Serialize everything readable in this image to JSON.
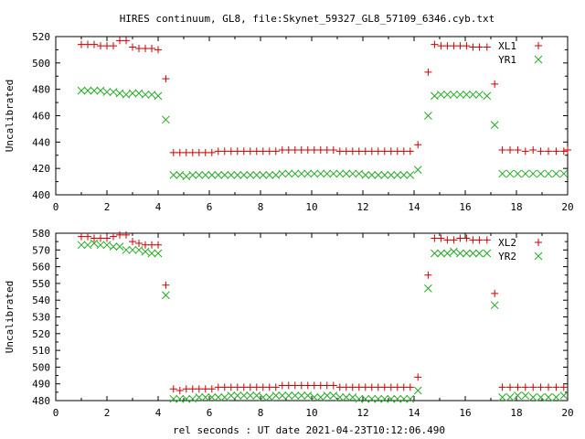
{
  "chart_data": {
    "title": "HIRES continuum, GL8, file:Skynet_59327_GL8_57109_6346.cyb.txt",
    "xlabel": "rel seconds : UT date 2021-04-23T10:12:06.490",
    "x_ticks": [
      "0",
      "2",
      "4",
      "6",
      "8",
      "10",
      "12",
      "14",
      "16",
      "18",
      "20"
    ],
    "colors": {
      "series1": "#cc0000",
      "series2": "#22aa22"
    },
    "panels": [
      {
        "type": "scatter",
        "ylabel": "Uncalibrated",
        "xlim": [
          0,
          20
        ],
        "ylim": [
          400,
          520
        ],
        "y_ticks": [
          "400",
          "420",
          "440",
          "460",
          "480",
          "500",
          "520"
        ],
        "legend_position": "top-right",
        "series": [
          {
            "name": "XL1",
            "marker": "plus",
            "color": "#cc0000",
            "x": [
              1.0,
              1.25,
              1.5,
              1.75,
              2.0,
              2.25,
              2.5,
              2.75,
              3.0,
              3.25,
              3.5,
              3.75,
              4.0,
              4.3,
              4.6,
              4.85,
              5.1,
              5.35,
              5.6,
              5.85,
              6.1,
              6.35,
              6.6,
              6.85,
              7.1,
              7.35,
              7.6,
              7.85,
              8.1,
              8.35,
              8.6,
              8.85,
              9.1,
              9.35,
              9.6,
              9.85,
              10.1,
              10.35,
              10.6,
              10.85,
              11.1,
              11.35,
              11.6,
              11.85,
              12.1,
              12.35,
              12.6,
              12.85,
              13.1,
              13.35,
              13.6,
              13.85,
              14.15,
              14.55,
              14.8,
              15.05,
              15.3,
              15.55,
              15.8,
              16.05,
              16.3,
              16.55,
              16.85,
              17.15,
              17.45,
              17.75,
              18.05,
              18.35,
              18.65,
              18.95,
              19.25,
              19.55,
              19.85
            ],
            "y": [
              514,
              514,
              514,
              513,
              513,
              513,
              517,
              517,
              512,
              511,
              511,
              511,
              510,
              488,
              432,
              432,
              432,
              432,
              432,
              432,
              432,
              433,
              433,
              433,
              433,
              433,
              433,
              433,
              433,
              433,
              433,
              434,
              434,
              434,
              434,
              434,
              434,
              434,
              434,
              434,
              433,
              433,
              433,
              433,
              433,
              433,
              433,
              433,
              433,
              433,
              433,
              433,
              438,
              493,
              514,
              513,
              513,
              513,
              513,
              513,
              512,
              512,
              512,
              484,
              434,
              434,
              434,
              433,
              434,
              433,
              433,
              433,
              433
            ],
            "extra_points_right_edge": [
              434
            ]
          },
          {
            "name": "YR1",
            "marker": "cross",
            "color": "#22aa22",
            "x": [
              1.0,
              1.25,
              1.5,
              1.75,
              2.0,
              2.25,
              2.5,
              2.75,
              3.0,
              3.25,
              3.5,
              3.75,
              4.0,
              4.3,
              4.6,
              4.85,
              5.1,
              5.35,
              5.6,
              5.85,
              6.1,
              6.35,
              6.6,
              6.85,
              7.1,
              7.35,
              7.6,
              7.85,
              8.1,
              8.35,
              8.6,
              8.85,
              9.1,
              9.35,
              9.6,
              9.85,
              10.1,
              10.35,
              10.6,
              10.85,
              11.1,
              11.35,
              11.6,
              11.85,
              12.1,
              12.35,
              12.6,
              12.85,
              13.1,
              13.35,
              13.6,
              13.85,
              14.15,
              14.55,
              14.8,
              15.05,
              15.3,
              15.55,
              15.8,
              16.05,
              16.3,
              16.55,
              16.85,
              17.15,
              17.45,
              17.75,
              18.05,
              18.35,
              18.65,
              18.95,
              19.25,
              19.55,
              19.85
            ],
            "y": [
              479,
              479,
              479,
              479,
              478,
              478,
              477,
              476,
              477,
              477,
              476,
              476,
              475,
              457,
              415,
              415,
              414,
              415,
              415,
              415,
              415,
              415,
              415,
              415,
              415,
              415,
              415,
              415,
              415,
              415,
              415,
              416,
              416,
              416,
              416,
              416,
              416,
              416,
              416,
              416,
              416,
              416,
              416,
              416,
              415,
              415,
              415,
              415,
              415,
              415,
              415,
              415,
              419,
              460,
              475,
              476,
              476,
              476,
              476,
              476,
              476,
              476,
              475,
              453,
              416,
              416,
              416,
              416,
              416,
              416,
              416,
              416,
              416
            ]
          }
        ]
      },
      {
        "type": "scatter",
        "ylabel": "Uncalibrated",
        "xlim": [
          0,
          20
        ],
        "ylim": [
          480,
          580
        ],
        "y_ticks": [
          "480",
          "490",
          "500",
          "510",
          "520",
          "530",
          "540",
          "550",
          "560",
          "570",
          "580"
        ],
        "legend_position": "top-right",
        "series": [
          {
            "name": "XL2",
            "marker": "plus",
            "color": "#cc0000",
            "x": [
              1.0,
              1.25,
              1.5,
              1.75,
              2.0,
              2.25,
              2.5,
              2.75,
              3.0,
              3.25,
              3.5,
              3.75,
              4.0,
              4.3,
              4.6,
              4.85,
              5.1,
              5.35,
              5.6,
              5.85,
              6.1,
              6.35,
              6.6,
              6.85,
              7.1,
              7.35,
              7.6,
              7.85,
              8.1,
              8.35,
              8.6,
              8.85,
              9.1,
              9.35,
              9.6,
              9.85,
              10.1,
              10.35,
              10.6,
              10.85,
              11.1,
              11.35,
              11.6,
              11.85,
              12.1,
              12.35,
              12.6,
              12.85,
              13.1,
              13.35,
              13.6,
              13.85,
              14.15,
              14.55,
              14.8,
              15.05,
              15.3,
              15.55,
              15.8,
              16.05,
              16.3,
              16.55,
              16.85,
              17.15,
              17.45,
              17.75,
              18.05,
              18.35,
              18.65,
              18.95,
              19.25,
              19.55,
              19.85
            ],
            "y": [
              578,
              578,
              577,
              577,
              577,
              578,
              579,
              579,
              575,
              574,
              573,
              573,
              573,
              549,
              487,
              486,
              487,
              487,
              487,
              487,
              487,
              488,
              488,
              488,
              488,
              488,
              488,
              488,
              488,
              488,
              488,
              489,
              489,
              489,
              489,
              489,
              489,
              489,
              489,
              489,
              488,
              488,
              488,
              488,
              488,
              488,
              488,
              488,
              488,
              488,
              488,
              488,
              494,
              555,
              577,
              577,
              576,
              576,
              577,
              577,
              576,
              576,
              576,
              544,
              488,
              488,
              488,
              488,
              488,
              488,
              488,
              488,
              488
            ]
          },
          {
            "name": "YR2",
            "marker": "cross",
            "color": "#22aa22",
            "x": [
              1.0,
              1.25,
              1.5,
              1.75,
              2.0,
              2.25,
              2.5,
              2.75,
              3.0,
              3.25,
              3.5,
              3.75,
              4.0,
              4.3,
              4.6,
              4.85,
              5.1,
              5.35,
              5.6,
              5.85,
              6.1,
              6.35,
              6.6,
              6.85,
              7.1,
              7.35,
              7.6,
              7.85,
              8.1,
              8.35,
              8.6,
              8.85,
              9.1,
              9.35,
              9.6,
              9.85,
              10.1,
              10.35,
              10.6,
              10.85,
              11.1,
              11.35,
              11.6,
              11.85,
              12.1,
              12.35,
              12.6,
              12.85,
              13.1,
              13.35,
              13.6,
              13.85,
              14.15,
              14.55,
              14.8,
              15.05,
              15.3,
              15.55,
              15.8,
              16.05,
              16.3,
              16.55,
              16.85,
              17.15,
              17.45,
              17.75,
              18.05,
              18.35,
              18.65,
              18.95,
              19.25,
              19.55,
              19.85
            ],
            "y": [
              573,
              573,
              574,
              573,
              573,
              572,
              572,
              570,
              570,
              570,
              569,
              568,
              568,
              543,
              481,
              481,
              481,
              481,
              482,
              482,
              482,
              482,
              482,
              483,
              483,
              483,
              483,
              483,
              482,
              482,
              483,
              483,
              483,
              483,
              483,
              483,
              482,
              482,
              483,
              483,
              482,
              482,
              482,
              481,
              481,
              481,
              481,
              481,
              481,
              481,
              481,
              481,
              486,
              547,
              568,
              568,
              568,
              569,
              568,
              568,
              568,
              568,
              568,
              537,
              482,
              482,
              483,
              483,
              482,
              482,
              482,
              482,
              483
            ]
          }
        ]
      }
    ]
  }
}
